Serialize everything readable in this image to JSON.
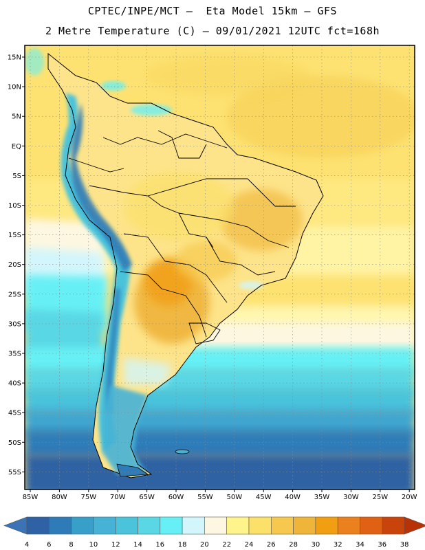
{
  "header": {
    "line1": "CPTEC/INPE/MCT –  Eta Model 15km – GFS",
    "line2": "2 Metre Temperature (C) – 09/01/2021 12UTC fct=168h"
  },
  "axes": {
    "lat_labels": [
      "15N",
      "10N",
      "5N",
      "EQ",
      "5S",
      "10S",
      "15S",
      "20S",
      "25S",
      "30S",
      "35S",
      "40S",
      "45S",
      "50S",
      "55S"
    ],
    "lon_labels": [
      "85W",
      "80W",
      "75W",
      "70W",
      "65W",
      "60W",
      "55W",
      "50W",
      "45W",
      "40W",
      "35W",
      "30W",
      "25W",
      "20W"
    ]
  },
  "colorbar": {
    "labels": [
      "4",
      "6",
      "8",
      "10",
      "12",
      "14",
      "16",
      "18",
      "20",
      "22",
      "24",
      "26",
      "28",
      "30",
      "32",
      "34",
      "36",
      "38"
    ],
    "colors": [
      "#2e62a4",
      "#2f7bb8",
      "#389fc9",
      "#46b3d6",
      "#4ac3db",
      "#5ad7e4",
      "#66f0f5",
      "#d2f6fb",
      "#fdf7e1",
      "#fff48c",
      "#fbe06a",
      "#f6c94e",
      "#efb43a",
      "#f29e12",
      "#eb801e",
      "#e06014",
      "#c8440a"
    ],
    "left_cap": "#3c73b7",
    "right_cap": "#b83208"
  },
  "map": {
    "region": "South America",
    "ocean_colors": {
      "tropical": "#fde06e",
      "subtropical": "#fff2a0",
      "mid": "#5fd9e6",
      "high": "#3f9fcc",
      "polar": "#2d62a3"
    }
  }
}
